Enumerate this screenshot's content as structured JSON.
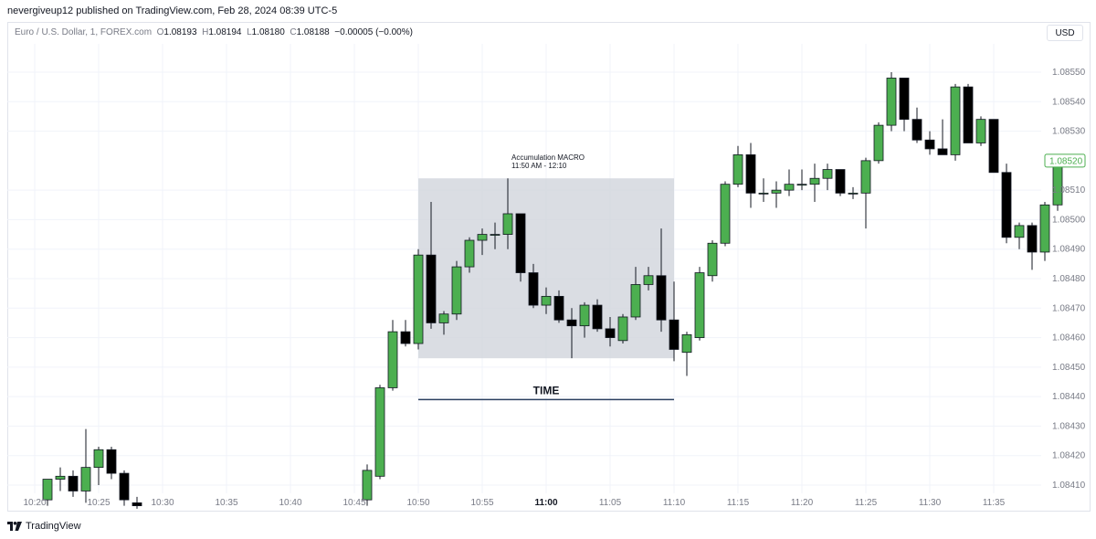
{
  "header": {
    "publisher_line": "nevergiveup12 published on TradingView.com, Feb 28, 2024 08:39 UTC-5"
  },
  "legend": {
    "symbol": "Euro / U.S. Dollar, 1, FOREX.com",
    "o_label": "O",
    "o_value": "1.08193",
    "h_label": "H",
    "h_value": "1.08194",
    "l_label": "L",
    "l_value": "1.08180",
    "c_label": "C",
    "c_value": "1.08188",
    "change": "−0.00005 (−0.00%)"
  },
  "currency_button": "USD",
  "footer": {
    "brand": "TradingView"
  },
  "colors": {
    "up": "#4caf50",
    "down": "#000000",
    "box": "#d1d4dc",
    "line": "#2a3f5f",
    "price_tag": "#4caf50"
  },
  "annotations": {
    "box_title": "Accumulation MACRO",
    "box_subtitle": "11:50 AM - 12:10",
    "time_label": "TIME"
  },
  "chart_data": {
    "type": "candlestick",
    "symbol": "EURUSD",
    "timeframe": "1",
    "y_ticks": [
      "1.08550",
      "1.08540",
      "1.08530",
      "1.08510",
      "1.08500",
      "1.08490",
      "1.08480",
      "1.08470",
      "1.08460",
      "1.08450",
      "1.08440",
      "1.08430",
      "1.08420",
      "1.08410"
    ],
    "current_price": "1.08520",
    "x_ticks": [
      "10:20",
      "10:25",
      "10:30",
      "10:35",
      "10:40",
      "10:45",
      "10:50",
      "10:55",
      "11:00",
      "11:05",
      "11:10",
      "11:15",
      "11:20",
      "11:25",
      "11:30",
      "11:35"
    ],
    "x_tick_minutes": [
      0,
      5,
      10,
      15,
      20,
      25,
      30,
      35,
      40,
      45,
      50,
      55,
      60,
      65,
      70,
      75
    ],
    "ylim": [
      1.08405,
      1.0856
    ],
    "box": {
      "from_minute": 30,
      "to_minute": 50,
      "top": 1.08514,
      "bottom": 1.08453
    },
    "time_line": {
      "from_minute": 30,
      "to_minute": 50,
      "price": 1.08439
    },
    "candles": [
      {
        "m": 1,
        "o": 1.08405,
        "h": 1.08412,
        "l": 1.08403,
        "c": 1.08412
      },
      {
        "m": 2,
        "o": 1.08412,
        "h": 1.08416,
        "l": 1.08408,
        "c": 1.08413
      },
      {
        "m": 3,
        "o": 1.08413,
        "h": 1.08415,
        "l": 1.08406,
        "c": 1.08408
      },
      {
        "m": 4,
        "o": 1.08408,
        "h": 1.08429,
        "l": 1.08404,
        "c": 1.08416
      },
      {
        "m": 5,
        "o": 1.08416,
        "h": 1.08423,
        "l": 1.0841,
        "c": 1.08422
      },
      {
        "m": 6,
        "o": 1.08422,
        "h": 1.08423,
        "l": 1.08412,
        "c": 1.08414
      },
      {
        "m": 7,
        "o": 1.08414,
        "h": 1.08415,
        "l": 1.08403,
        "c": 1.08405
      },
      {
        "m": 8,
        "o": 1.08404,
        "h": 1.08406,
        "l": 1.08402,
        "c": 1.08403
      },
      {
        "m": 26,
        "o": 1.08405,
        "h": 1.08417,
        "l": 1.08403,
        "c": 1.08415
      },
      {
        "m": 27,
        "o": 1.08413,
        "h": 1.08444,
        "l": 1.08412,
        "c": 1.08443
      },
      {
        "m": 28,
        "o": 1.08443,
        "h": 1.08466,
        "l": 1.08442,
        "c": 1.08462
      },
      {
        "m": 29,
        "o": 1.08462,
        "h": 1.08466,
        "l": 1.08457,
        "c": 1.08458
      },
      {
        "m": 30,
        "o": 1.08458,
        "h": 1.0849,
        "l": 1.08456,
        "c": 1.08488
      },
      {
        "m": 31,
        "o": 1.08488,
        "h": 1.08506,
        "l": 1.08463,
        "c": 1.08465
      },
      {
        "m": 32,
        "o": 1.08465,
        "h": 1.08469,
        "l": 1.08461,
        "c": 1.08468
      },
      {
        "m": 33,
        "o": 1.08468,
        "h": 1.08486,
        "l": 1.08466,
        "c": 1.08484
      },
      {
        "m": 34,
        "o": 1.08484,
        "h": 1.08494,
        "l": 1.08482,
        "c": 1.08493
      },
      {
        "m": 35,
        "o": 1.08493,
        "h": 1.08497,
        "l": 1.08488,
        "c": 1.08495
      },
      {
        "m": 36,
        "o": 1.08495,
        "h": 1.08499,
        "l": 1.0849,
        "c": 1.08495
      },
      {
        "m": 37,
        "o": 1.08495,
        "h": 1.08514,
        "l": 1.0849,
        "c": 1.08502
      },
      {
        "m": 38,
        "o": 1.08502,
        "h": 1.08502,
        "l": 1.08479,
        "c": 1.08482
      },
      {
        "m": 39,
        "o": 1.08482,
        "h": 1.08485,
        "l": 1.0847,
        "c": 1.08471
      },
      {
        "m": 40,
        "o": 1.08471,
        "h": 1.08477,
        "l": 1.08468,
        "c": 1.08474
      },
      {
        "m": 41,
        "o": 1.08474,
        "h": 1.08476,
        "l": 1.08465,
        "c": 1.08466
      },
      {
        "m": 42,
        "o": 1.08466,
        "h": 1.0847,
        "l": 1.08453,
        "c": 1.08464
      },
      {
        "m": 43,
        "o": 1.08464,
        "h": 1.08472,
        "l": 1.0846,
        "c": 1.08471
      },
      {
        "m": 44,
        "o": 1.08471,
        "h": 1.08473,
        "l": 1.08462,
        "c": 1.08463
      },
      {
        "m": 45,
        "o": 1.08463,
        "h": 1.08467,
        "l": 1.08457,
        "c": 1.0846
      },
      {
        "m": 46,
        "o": 1.08459,
        "h": 1.08468,
        "l": 1.08458,
        "c": 1.08467
      },
      {
        "m": 47,
        "o": 1.08467,
        "h": 1.08484,
        "l": 1.08466,
        "c": 1.08478
      },
      {
        "m": 48,
        "o": 1.08478,
        "h": 1.08484,
        "l": 1.08476,
        "c": 1.08481
      },
      {
        "m": 49,
        "o": 1.08481,
        "h": 1.08497,
        "l": 1.08462,
        "c": 1.08466
      },
      {
        "m": 50,
        "o": 1.08466,
        "h": 1.08479,
        "l": 1.08452,
        "c": 1.08456
      },
      {
        "m": 51,
        "o": 1.08455,
        "h": 1.08462,
        "l": 1.08447,
        "c": 1.08461
      },
      {
        "m": 52,
        "o": 1.0846,
        "h": 1.08484,
        "l": 1.08459,
        "c": 1.08482
      },
      {
        "m": 53,
        "o": 1.08481,
        "h": 1.08493,
        "l": 1.08479,
        "c": 1.08492
      },
      {
        "m": 54,
        "o": 1.08492,
        "h": 1.08513,
        "l": 1.08491,
        "c": 1.08512
      },
      {
        "m": 55,
        "o": 1.08512,
        "h": 1.08525,
        "l": 1.08511,
        "c": 1.08522
      },
      {
        "m": 56,
        "o": 1.08522,
        "h": 1.08526,
        "l": 1.08504,
        "c": 1.08509
      },
      {
        "m": 57,
        "o": 1.08509,
        "h": 1.08514,
        "l": 1.08506,
        "c": 1.08509
      },
      {
        "m": 58,
        "o": 1.08509,
        "h": 1.08513,
        "l": 1.08504,
        "c": 1.0851
      },
      {
        "m": 59,
        "o": 1.0851,
        "h": 1.08517,
        "l": 1.08508,
        "c": 1.08512
      },
      {
        "m": 60,
        "o": 1.08512,
        "h": 1.08517,
        "l": 1.0851,
        "c": 1.08512
      },
      {
        "m": 61,
        "o": 1.08512,
        "h": 1.08519,
        "l": 1.08506,
        "c": 1.08514
      },
      {
        "m": 62,
        "o": 1.08514,
        "h": 1.08519,
        "l": 1.0851,
        "c": 1.08517
      },
      {
        "m": 63,
        "o": 1.08517,
        "h": 1.08517,
        "l": 1.08508,
        "c": 1.08509
      },
      {
        "m": 64,
        "o": 1.08509,
        "h": 1.08511,
        "l": 1.08507,
        "c": 1.08509
      },
      {
        "m": 65,
        "o": 1.08509,
        "h": 1.08521,
        "l": 1.08497,
        "c": 1.0852
      },
      {
        "m": 66,
        "o": 1.0852,
        "h": 1.08533,
        "l": 1.08519,
        "c": 1.08532
      },
      {
        "m": 67,
        "o": 1.08532,
        "h": 1.0855,
        "l": 1.0853,
        "c": 1.08548
      },
      {
        "m": 68,
        "o": 1.08548,
        "h": 1.08548,
        "l": 1.0853,
        "c": 1.08534
      },
      {
        "m": 69,
        "o": 1.08534,
        "h": 1.08538,
        "l": 1.08526,
        "c": 1.08527
      },
      {
        "m": 70,
        "o": 1.08527,
        "h": 1.0853,
        "l": 1.08522,
        "c": 1.08524
      },
      {
        "m": 71,
        "o": 1.08524,
        "h": 1.08534,
        "l": 1.08522,
        "c": 1.08522
      },
      {
        "m": 72,
        "o": 1.08522,
        "h": 1.08546,
        "l": 1.0852,
        "c": 1.08545
      },
      {
        "m": 73,
        "o": 1.08545,
        "h": 1.08546,
        "l": 1.08526,
        "c": 1.08526
      },
      {
        "m": 74,
        "o": 1.08526,
        "h": 1.08535,
        "l": 1.08525,
        "c": 1.08534
      },
      {
        "m": 75,
        "o": 1.08534,
        "h": 1.08534,
        "l": 1.08516,
        "c": 1.08516
      },
      {
        "m": 76,
        "o": 1.08516,
        "h": 1.08519,
        "l": 1.08492,
        "c": 1.08494
      },
      {
        "m": 77,
        "o": 1.08494,
        "h": 1.08499,
        "l": 1.0849,
        "c": 1.08498
      },
      {
        "m": 78,
        "o": 1.08498,
        "h": 1.08499,
        "l": 1.08483,
        "c": 1.08489
      },
      {
        "m": 79,
        "o": 1.08489,
        "h": 1.08506,
        "l": 1.08486,
        "c": 1.08505
      },
      {
        "m": 80,
        "o": 1.08505,
        "h": 1.0852,
        "l": 1.08503,
        "c": 1.08519
      }
    ]
  }
}
